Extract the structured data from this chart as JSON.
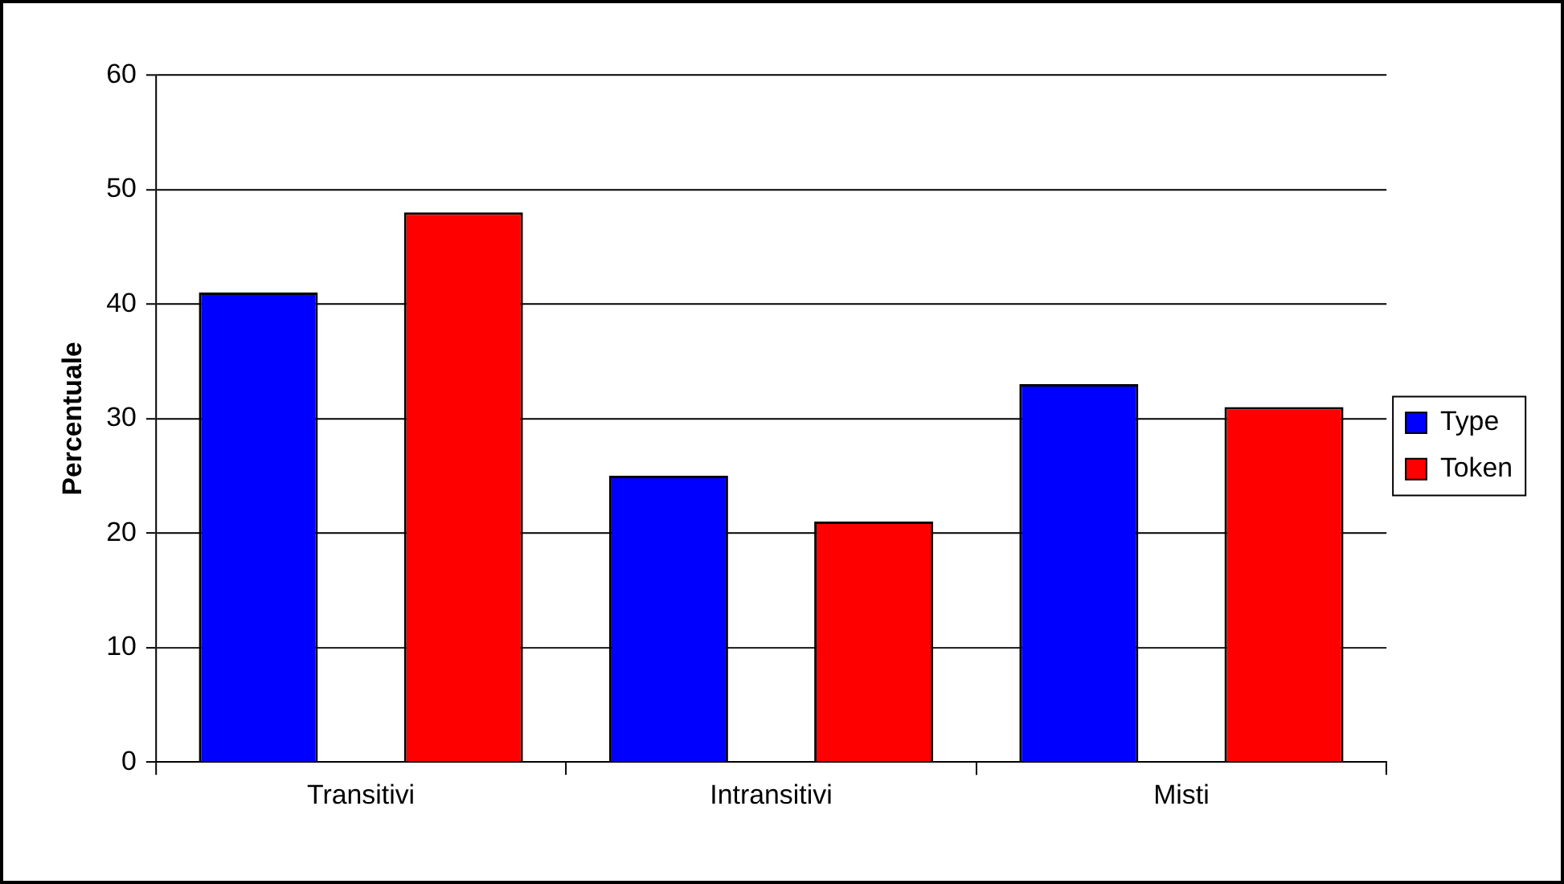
{
  "chart_data": {
    "type": "bar",
    "ylabel": "Percentuale",
    "categories": [
      "Transitivi",
      "Intransitivi",
      "Misti"
    ],
    "series": [
      {
        "name": "Type",
        "color": "#0000ff",
        "values": [
          41,
          25,
          33
        ]
      },
      {
        "name": "Token",
        "color": "#ff0000",
        "values": [
          48,
          21,
          31
        ]
      }
    ],
    "ylim": [
      0,
      60
    ],
    "yticks": [
      0,
      10,
      20,
      30,
      40,
      50,
      60
    ],
    "grid": "y",
    "legend": "right"
  }
}
